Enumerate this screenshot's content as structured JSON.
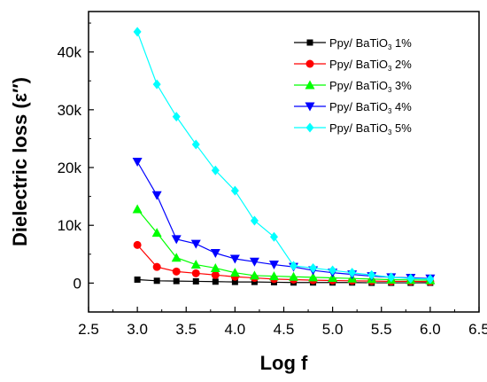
{
  "chart_data": {
    "type": "line",
    "xlabel": "Log f",
    "ylabel": "Dielectric loss (ε′′)",
    "xlim": [
      2.5,
      6.5
    ],
    "ylim": [
      -5000,
      47000
    ],
    "x_ticks": [
      "2.5",
      "3.0",
      "3.5",
      "4.0",
      "4.5",
      "5.0",
      "5.5",
      "6.0",
      "6.5"
    ],
    "y_ticks": [
      "0",
      "10k",
      "20k",
      "30k",
      "40k"
    ],
    "x": [
      3.0,
      3.2,
      3.4,
      3.6,
      3.8,
      4.0,
      4.2,
      4.4,
      4.6,
      4.8,
      5.0,
      5.2,
      5.4,
      5.6,
      5.8,
      6.0
    ],
    "series": [
      {
        "name": "Ppy/ BaTiO3 1%",
        "legend_main": "Ppy/ BaTiO",
        "legend_sub": "3",
        "legend_tail": " 1%",
        "color": "#000000",
        "marker": "square",
        "values": [
          600,
          400,
          350,
          300,
          250,
          200,
          200,
          150,
          100,
          100,
          100,
          100,
          50,
          50,
          50,
          50
        ]
      },
      {
        "name": "Ppy/ BaTiO3 2%",
        "legend_main": "Ppy/ BaTiO",
        "legend_sub": "3",
        "legend_tail": " 2%",
        "color": "#ff0000",
        "marker": "circle",
        "values": [
          6600,
          2800,
          2000,
          1700,
          1400,
          1100,
          900,
          700,
          600,
          500,
          450,
          400,
          350,
          300,
          300,
          250
        ]
      },
      {
        "name": "Ppy/ BaTiO3 3%",
        "legend_main": "Ppy/ BaTiO",
        "legend_sub": "3",
        "legend_tail": " 3%",
        "color": "#00ff00",
        "marker": "triangle-up",
        "values": [
          12800,
          8700,
          4400,
          3200,
          2600,
          1800,
          1300,
          1200,
          1100,
          1000,
          900,
          800,
          700,
          600,
          550,
          500
        ]
      },
      {
        "name": "Ppy/ BaTiO3 4%",
        "legend_main": "Ppy/ BaTiO",
        "legend_sub": "3",
        "legend_tail": " 4%",
        "color": "#0000ff",
        "marker": "triangle-down",
        "values": [
          21000,
          15200,
          7600,
          6800,
          5200,
          4200,
          3700,
          3200,
          2800,
          2200,
          1800,
          1500,
          1200,
          1000,
          900,
          800
        ]
      },
      {
        "name": "Ppy/ BaTiO3 5%",
        "legend_main": "Ppy/ BaTiO",
        "legend_sub": "3",
        "legend_tail": " 5%",
        "color": "#00ffff",
        "marker": "diamond",
        "values": [
          43500,
          34400,
          28800,
          24000,
          19500,
          16000,
          10800,
          8000,
          3000,
          2600,
          2200,
          1800,
          1400,
          1000,
          800,
          700
        ]
      }
    ],
    "legend_position": "top-right",
    "grid": false
  }
}
